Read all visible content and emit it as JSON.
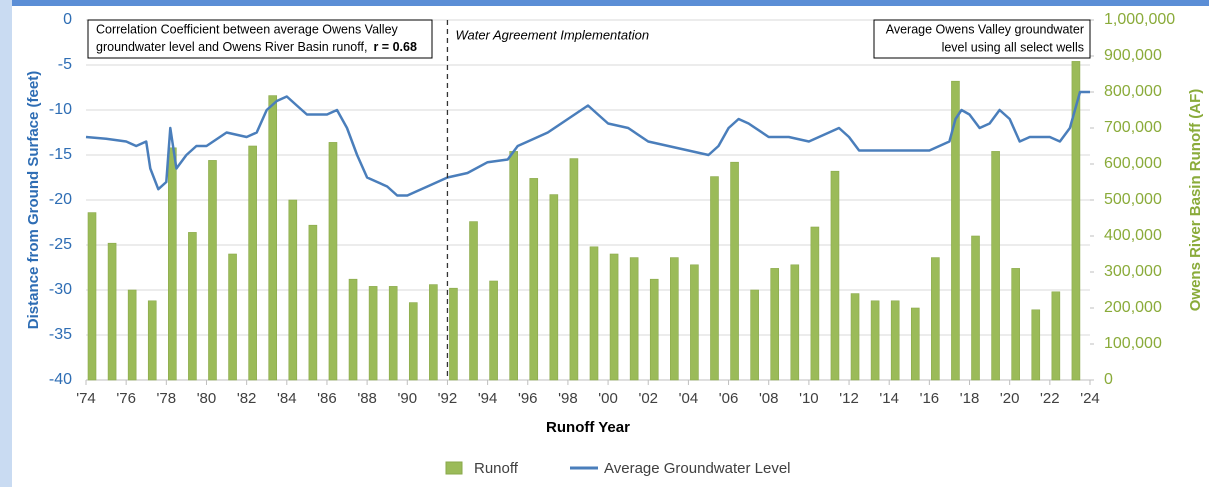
{
  "chart_data": {
    "type": "bar-line",
    "xlabel": "Runoff Year",
    "ylabel": "Distance from Ground Surface (feet)",
    "y2label": "Owens River Basin Runoff (AF)",
    "xlim": [
      1974,
      2024
    ],
    "xticks": [
      {
        "value": 1974,
        "label": "'74"
      },
      {
        "value": 1976,
        "label": "'76"
      },
      {
        "value": 1978,
        "label": "'78"
      },
      {
        "value": 1980,
        "label": "'80"
      },
      {
        "value": 1982,
        "label": "'82"
      },
      {
        "value": 1984,
        "label": "'84"
      },
      {
        "value": 1986,
        "label": "'86"
      },
      {
        "value": 1988,
        "label": "'88"
      },
      {
        "value": 1990,
        "label": "'90"
      },
      {
        "value": 1992,
        "label": "'92"
      },
      {
        "value": 1994,
        "label": "'94"
      },
      {
        "value": 1996,
        "label": "'96"
      },
      {
        "value": 1998,
        "label": "'98"
      },
      {
        "value": 2000,
        "label": "'00"
      },
      {
        "value": 2002,
        "label": "'02"
      },
      {
        "value": 2004,
        "label": "'04"
      },
      {
        "value": 2006,
        "label": "'06"
      },
      {
        "value": 2008,
        "label": "'08"
      },
      {
        "value": 2010,
        "label": "'10"
      },
      {
        "value": 2012,
        "label": "'12"
      },
      {
        "value": 2014,
        "label": "'14"
      },
      {
        "value": 2016,
        "label": "'16"
      },
      {
        "value": 2018,
        "label": "'18"
      },
      {
        "value": 2020,
        "label": "'20"
      },
      {
        "value": 2022,
        "label": "'22"
      },
      {
        "value": 2024,
        "label": "'24"
      }
    ],
    "ylim": [
      -40,
      0
    ],
    "yticks": [
      0,
      -5,
      -10,
      -15,
      -20,
      -25,
      -30,
      -35,
      -40
    ],
    "y2lim": [
      0,
      1000000
    ],
    "y2ticks": [
      {
        "value": 0,
        "label": "0"
      },
      {
        "value": 100000,
        "label": "100,000"
      },
      {
        "value": 200000,
        "label": "200,000"
      },
      {
        "value": 300000,
        "label": "300,000"
      },
      {
        "value": 400000,
        "label": "400,000"
      },
      {
        "value": 500000,
        "label": "500,000"
      },
      {
        "value": 600000,
        "label": "600,000"
      },
      {
        "value": 700000,
        "label": "700,000"
      },
      {
        "value": 800000,
        "label": "800,000"
      },
      {
        "value": 900000,
        "label": "900,000"
      },
      {
        "value": 1000000,
        "label": "1,000,000"
      }
    ],
    "grid": true,
    "legend": "bottom",
    "series": [
      {
        "name": "Runoff",
        "type": "bar",
        "axis": "y2",
        "color": "#9bbb59",
        "x": [
          1974,
          1975,
          1976,
          1977,
          1978,
          1979,
          1980,
          1981,
          1982,
          1983,
          1984,
          1985,
          1986,
          1987,
          1988,
          1989,
          1990,
          1991,
          1992,
          1993,
          1994,
          1995,
          1996,
          1997,
          1998,
          1999,
          2000,
          2001,
          2002,
          2003,
          2004,
          2005,
          2006,
          2007,
          2008,
          2009,
          2010,
          2011,
          2012,
          2013,
          2014,
          2015,
          2016,
          2017,
          2018,
          2019,
          2020,
          2021,
          2022,
          2023
        ],
        "values": [
          465000,
          380000,
          250000,
          220000,
          645000,
          410000,
          610000,
          350000,
          650000,
          790000,
          500000,
          430000,
          660000,
          280000,
          260000,
          260000,
          215000,
          265000,
          255000,
          440000,
          275000,
          635000,
          560000,
          515000,
          615000,
          370000,
          350000,
          340000,
          280000,
          340000,
          320000,
          565000,
          605000,
          250000,
          310000,
          320000,
          425000,
          580000,
          240000,
          220000,
          220000,
          200000,
          340000,
          830000,
          400000,
          635000,
          310000,
          195000,
          245000,
          885000
        ]
      },
      {
        "name": "Average Groundwater Level",
        "type": "line",
        "color": "#4a7ebb",
        "x": [
          1974,
          1975,
          1976,
          1976.5,
          1977,
          1977.2,
          1977.6,
          1978,
          1978.2,
          1978.5,
          1979,
          1979.5,
          1980,
          1981,
          1982,
          1982.5,
          1983,
          1983.5,
          1984,
          1984.5,
          1985,
          1986,
          1986.5,
          1987,
          1987.5,
          1988,
          1988.5,
          1989,
          1989.5,
          1990,
          1990.5,
          1991,
          1991.5,
          1992,
          1993,
          1994,
          1995,
          1995.5,
          1996,
          1997,
          1998,
          1999,
          1999.5,
          2000,
          2001,
          2002,
          2003,
          2004,
          2005,
          2005.5,
          2006,
          2006.5,
          2007,
          2008,
          2009,
          2010,
          2011,
          2011.5,
          2012,
          2012.5,
          2013,
          2014,
          2015,
          2016,
          2016.5,
          2017,
          2017.3,
          2017.6,
          2018,
          2018.5,
          2019,
          2019.5,
          2020,
          2020.5,
          2021,
          2021.5,
          2022,
          2022.5,
          2023,
          2023.5,
          2024
        ],
        "values": [
          -13,
          -13.2,
          -13.5,
          -14,
          -13.5,
          -16.5,
          -18.8,
          -18,
          -12,
          -16.5,
          -15,
          -14,
          -14,
          -12.5,
          -13,
          -12.5,
          -10,
          -9,
          -8.5,
          -9.5,
          -10.5,
          -10.5,
          -10,
          -12,
          -15,
          -17.5,
          -18,
          -18.5,
          -19.5,
          -19.5,
          -19,
          -18.5,
          -18,
          -17.5,
          -17,
          -15.8,
          -15.5,
          -14,
          -13.5,
          -12.5,
          -11,
          -9.5,
          -10.5,
          -11.5,
          -12,
          -13.5,
          -14,
          -14.5,
          -15,
          -14,
          -12,
          -11,
          -11.5,
          -13,
          -13,
          -13.5,
          -12.5,
          -12,
          -13,
          -14.5,
          -14.5,
          -14.5,
          -14.5,
          -14.5,
          -14,
          -13.5,
          -11,
          -10,
          -10.5,
          -12,
          -11.5,
          -10,
          -11,
          -13.5,
          -13,
          -13,
          -13,
          -13.5,
          -12,
          -8,
          -8
        ]
      }
    ],
    "annotations": {
      "correlation": [
        "Correlation Coefficient between average Owens Valley",
        "groundwater level and Owens River Basin runoff,",
        "r = 0.68"
      ],
      "agreement": {
        "x": 1992,
        "label": "Water Agreement Implementation"
      },
      "wells": [
        "Average Owens Valley groundwater",
        "level using all select wells"
      ]
    }
  }
}
